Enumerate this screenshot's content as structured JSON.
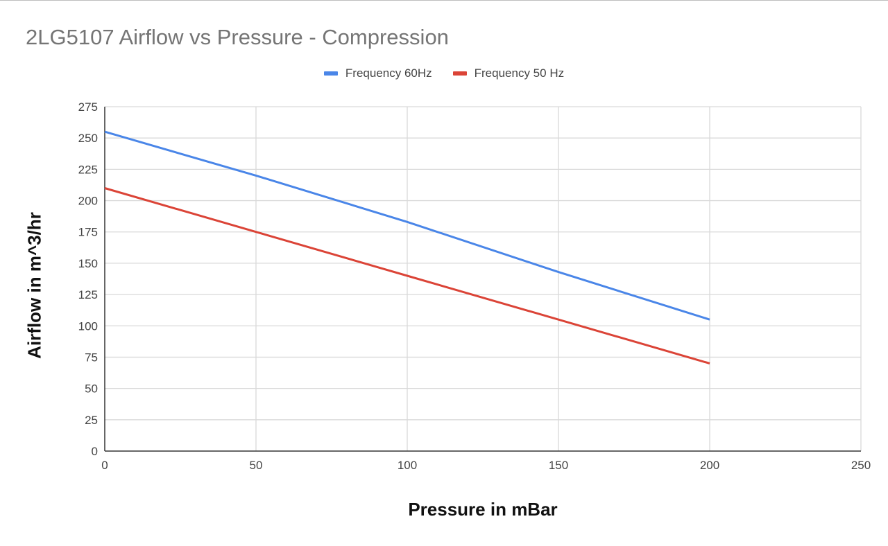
{
  "chart_data": {
    "type": "line",
    "title": "2LG5107 Airflow vs Pressure - Compression",
    "xlabel": "Pressure in mBar",
    "ylabel": "Airflow in m^3/hr",
    "xlim": [
      0,
      250
    ],
    "ylim": [
      0,
      275
    ],
    "x_ticks": [
      "0",
      "50",
      "100",
      "150",
      "200",
      "250"
    ],
    "y_ticks": [
      "0",
      "25",
      "50",
      "75",
      "100",
      "125",
      "150",
      "175",
      "200",
      "225",
      "250",
      "275"
    ],
    "grid": true,
    "legend_position": "top",
    "series": [
      {
        "name": "Frequency 60Hz",
        "color": "#4a86e8",
        "x": [
          0,
          50,
          100,
          150,
          200
        ],
        "y": [
          255,
          220,
          183,
          143,
          105
        ]
      },
      {
        "name": "Frequency 50 Hz",
        "color": "#db4437",
        "x": [
          0,
          50,
          100,
          150,
          200
        ],
        "y": [
          210,
          175,
          140,
          105,
          70
        ]
      }
    ]
  }
}
